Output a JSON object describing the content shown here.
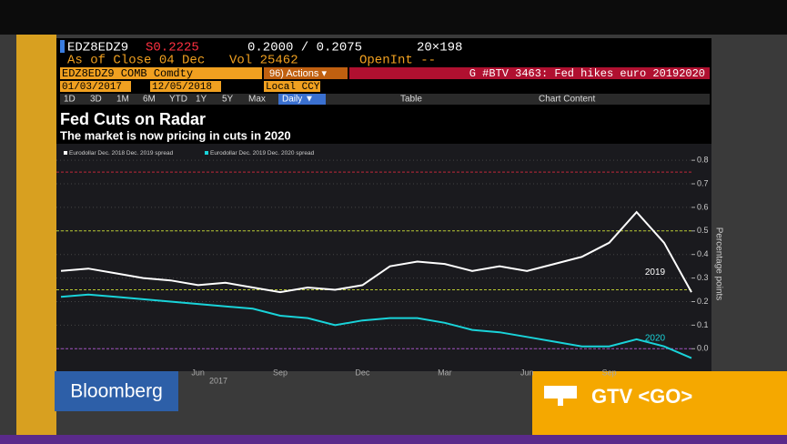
{
  "screen": {
    "ticker": "EDZ8EDZ9",
    "last": "S0.2225",
    "bid_ask": "0.2000 / 0.2075",
    "size": "20×198",
    "as_of": "As of Close 04 Dec",
    "volume": "Vol 25462",
    "open_int": "OpenInt --",
    "security": "EDZ8EDZ9 COMB Comdty",
    "actions": "96) Actions ▾",
    "page_title": "G #BTV 3463: Fed hikes euro 20192020",
    "start_date": "01/03/2017",
    "end_date": "12/05/2018",
    "currency": "Local CCY",
    "periods": [
      "1D",
      "3D",
      "1M",
      "6M",
      "YTD",
      "1Y",
      "5Y",
      "Max"
    ],
    "frequency": "Daily ▼",
    "table": "Table",
    "chart_content": "Chart Content",
    "brand": "Bloomberg",
    "promo": "GTV <GO>"
  },
  "chart_data": {
    "type": "line",
    "title": "Fed Cuts on Radar",
    "subtitle": "The market is now pricing in cuts in 2020",
    "y_label": "Percentage points",
    "x_group_label": "2017",
    "categories": [
      null,
      null,
      null,
      null,
      null,
      "Jun",
      null,
      null,
      "Sep",
      null,
      null,
      "Dec",
      null,
      null,
      "Mar",
      null,
      null,
      "Jun",
      null,
      null,
      "Sep",
      null,
      null,
      null
    ],
    "series": [
      {
        "name": "Eurodollar Dec. 2018 Dec. 2019 spread",
        "color": "#ffffff",
        "annotation": "2019",
        "values": [
          0.33,
          0.34,
          0.32,
          0.3,
          0.29,
          0.27,
          0.28,
          0.26,
          0.24,
          0.26,
          0.25,
          0.27,
          0.35,
          0.37,
          0.36,
          0.33,
          0.35,
          0.33,
          0.36,
          0.39,
          0.45,
          0.58,
          0.45,
          0.24
        ]
      },
      {
        "name": "Eurodollar Dec. 2019 Dec. 2020 spread",
        "color": "#19d3d9",
        "annotation": "2020",
        "values": [
          0.22,
          0.23,
          0.22,
          0.21,
          0.2,
          0.19,
          0.18,
          0.17,
          0.14,
          0.13,
          0.1,
          0.12,
          0.13,
          0.13,
          0.11,
          0.08,
          0.07,
          0.05,
          0.03,
          0.01,
          0.01,
          0.04,
          0.01,
          -0.04
        ]
      }
    ],
    "ylim": [
      -0.08,
      0.87
    ],
    "yticks": [
      {
        "value": 0,
        "label": "0.0"
      },
      0.1,
      0.2,
      0.3,
      0.4,
      0.5,
      0.6,
      0.7,
      0.8
    ],
    "grid": true,
    "reference_lines": [
      {
        "value": 0.75,
        "color": "#c0283a"
      },
      {
        "value": 0.5,
        "color": "#b8c832"
      },
      {
        "value": 0.25,
        "color": "#b8c832"
      },
      {
        "value": 0,
        "color": "#a050c0"
      }
    ]
  }
}
